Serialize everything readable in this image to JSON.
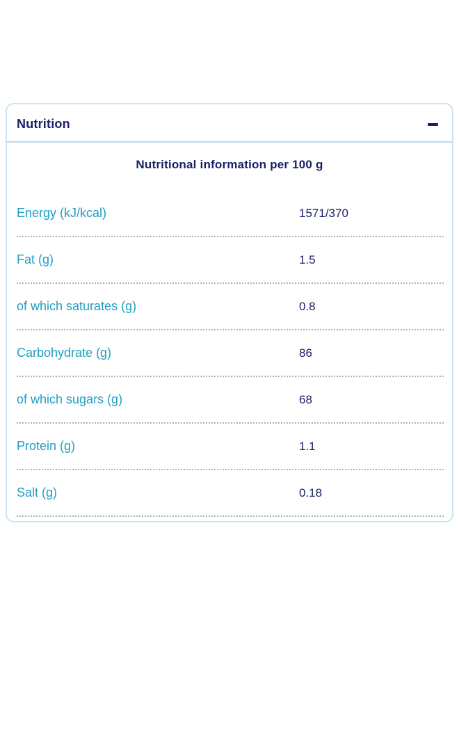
{
  "card": {
    "header": {
      "title": "Nutrition",
      "collapse_icon": "minus-icon"
    },
    "table_title": "Nutritional information per 100 g",
    "rows": [
      {
        "label": "Energy (kJ/kcal)",
        "value": "1571/370"
      },
      {
        "label": "Fat (g)",
        "value": "1.5"
      },
      {
        "label": "of which saturates (g)",
        "value": "0.8"
      },
      {
        "label": "Carbohydrate (g)",
        "value": "86"
      },
      {
        "label": "of which sugars (g)",
        "value": "68"
      },
      {
        "label": "Protein (g)",
        "value": "1.1"
      },
      {
        "label": "Salt (g)",
        "value": "0.18"
      }
    ],
    "colors": {
      "navy_text": "#1a2066",
      "teal_label": "#1f9fc4",
      "card_border": "#c9e5f3",
      "header_divider": "#b9dbee",
      "row_divider": "#a9b1b9"
    }
  }
}
